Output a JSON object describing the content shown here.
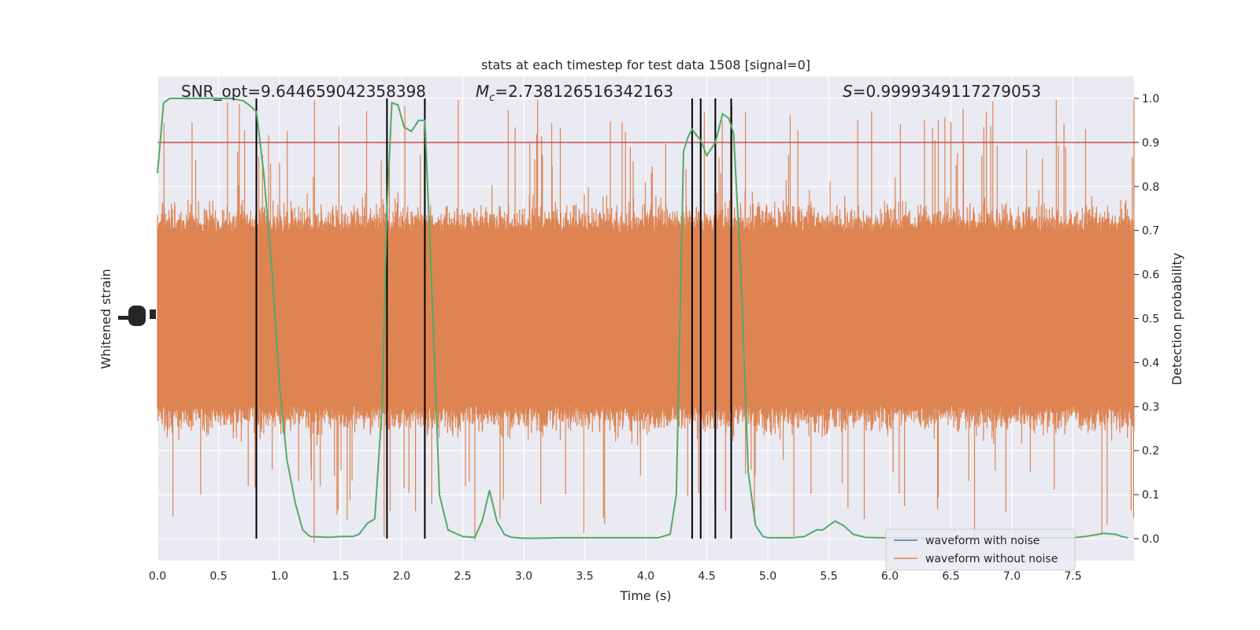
{
  "chart_data": {
    "type": "line",
    "title": "stats at each timestep for test data 1508 [signal=0]",
    "xlabel": "Time (s)",
    "ylabel_left": "Whitened strain",
    "ylabel_right": "Detection probability",
    "xlim": [
      0.0,
      8.0
    ],
    "ylim_right": [
      -0.05,
      1.05
    ],
    "x_ticks": [
      "0.0",
      "0.5",
      "1.0",
      "1.5",
      "2.0",
      "2.5",
      "3.0",
      "3.5",
      "4.0",
      "4.5",
      "5.0",
      "5.5",
      "6.0",
      "6.5",
      "7.0",
      "7.5"
    ],
    "y_ticks_right": [
      "0.0",
      "0.1",
      "0.2",
      "0.3",
      "0.4",
      "0.5",
      "0.6",
      "0.7",
      "0.8",
      "0.9",
      "1.0"
    ],
    "annotations": {
      "snr": "SNR_opt=9.644659042358398",
      "mc_symbol": "M",
      "mc_sub": "c",
      "mc_value": "=2.738126516342163",
      "s_symbol": "S",
      "s_value": "=0.9999349117279053"
    },
    "threshold": 0.9,
    "vlines": [
      0.81,
      1.88,
      2.19,
      4.38,
      4.45,
      4.57,
      4.7
    ],
    "detection_probability": {
      "x": [
        0.0,
        0.05,
        0.1,
        0.2,
        0.3,
        0.4,
        0.5,
        0.6,
        0.7,
        0.75,
        0.81,
        0.87,
        0.94,
        1.0,
        1.06,
        1.13,
        1.19,
        1.25,
        1.4,
        1.5,
        1.6,
        1.65,
        1.72,
        1.78,
        1.84,
        1.88,
        1.92,
        1.97,
        2.02,
        2.08,
        2.14,
        2.19,
        2.25,
        2.31,
        2.38,
        2.5,
        2.6,
        2.66,
        2.72,
        2.78,
        2.84,
        2.9,
        3.0,
        3.1,
        3.3,
        3.5,
        3.8,
        4.0,
        4.1,
        4.2,
        4.25,
        4.31,
        4.35,
        4.38,
        4.42,
        4.45,
        4.5,
        4.57,
        4.63,
        4.68,
        4.72,
        4.78,
        4.84,
        4.9,
        4.96,
        5.0,
        5.1,
        5.2,
        5.3,
        5.4,
        5.45,
        5.55,
        5.62,
        5.7,
        5.8,
        5.9,
        6.0,
        6.5,
        7.0,
        7.3,
        7.5,
        7.6,
        7.75,
        7.85,
        7.9,
        7.95
      ],
      "y": [
        0.83,
        0.99,
        1.0,
        1.0,
        1.0,
        1.0,
        1.0,
        1.0,
        0.995,
        0.985,
        0.97,
        0.83,
        0.6,
        0.35,
        0.18,
        0.08,
        0.02,
        0.005,
        0.003,
        0.005,
        0.005,
        0.01,
        0.035,
        0.045,
        0.3,
        0.75,
        0.99,
        0.985,
        0.935,
        0.925,
        0.95,
        0.95,
        0.55,
        0.1,
        0.02,
        0.005,
        0.003,
        0.04,
        0.11,
        0.04,
        0.01,
        0.003,
        0.001,
        0.001,
        0.002,
        0.002,
        0.002,
        0.002,
        0.002,
        0.01,
        0.1,
        0.88,
        0.915,
        0.93,
        0.915,
        0.905,
        0.87,
        0.9,
        0.965,
        0.955,
        0.92,
        0.6,
        0.15,
        0.03,
        0.005,
        0.002,
        0.002,
        0.002,
        0.005,
        0.02,
        0.02,
        0.04,
        0.03,
        0.01,
        0.003,
        0.002,
        0.002,
        0.002,
        0.002,
        0.002,
        0.002,
        0.005,
        0.012,
        0.01,
        0.005,
        0.002
      ]
    },
    "legend": {
      "placement": "lower-right",
      "items": [
        {
          "label": "waveform with noise",
          "color": "#4c72b0"
        },
        {
          "label": "waveform without noise",
          "color": "#dd8452"
        }
      ]
    },
    "colors": {
      "noise_trace": "#dd8452",
      "probability": "#55a868",
      "threshold": "#c44e52",
      "vlines": "#000000",
      "axes_bg": "#eaeaf2"
    }
  }
}
